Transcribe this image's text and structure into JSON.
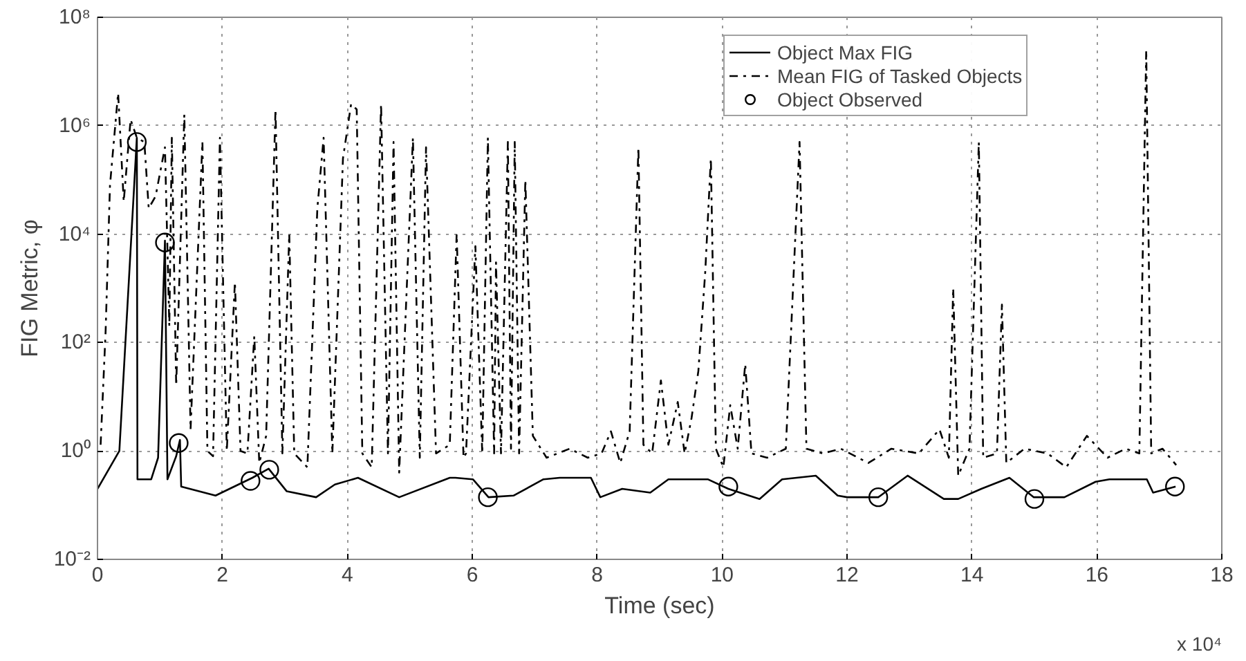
{
  "chart_data": {
    "type": "line",
    "xlabel": "Time (sec)",
    "ylabel": "FIG Metric, φ",
    "annotations": [
      "x 10⁴"
    ],
    "xlim": [
      0,
      18
    ],
    "xticks": [
      0,
      2,
      4,
      6,
      8,
      10,
      12,
      14,
      16,
      18
    ],
    "ylim": [
      0.01,
      100000000
    ],
    "log": true,
    "yticks": [
      {
        "value": 0.01,
        "label": "10⁻²"
      },
      {
        "value": 1,
        "label": "10⁰"
      },
      {
        "value": 100,
        "label": "10²"
      },
      {
        "value": 10000,
        "label": "10⁴"
      },
      {
        "value": 1000000,
        "label": "10⁶"
      },
      {
        "value": 100000000,
        "label": "10⁸"
      }
    ],
    "grid": true,
    "legend": "top right",
    "series": [
      {
        "name": "Object Max FIG",
        "line_style": "solid",
        "color": "#000000",
        "x": [
          0,
          0.35,
          0.63,
          0.64,
          0.86,
          0.97,
          1.08,
          1.12,
          1.26,
          1.32,
          1.34,
          1.89,
          2.48,
          2.74,
          3.03,
          3.5,
          3.8,
          4.17,
          4.83,
          5.64,
          5.73,
          6.01,
          6.26,
          6.66,
          7.14,
          7.4,
          7.9,
          8.05,
          8.4,
          8.85,
          9.14,
          9.77,
          10.1,
          10.6,
          10.96,
          11.5,
          11.85,
          12.0,
          12.5,
          12.97,
          13.55,
          13.78,
          14.15,
          14.6,
          14.99,
          15.48,
          15.98,
          16.2,
          16.8,
          16.9,
          17.26
        ],
        "values": [
          0.2,
          1,
          600000,
          0.3,
          0.3,
          0.75,
          7600,
          0.3,
          0.8,
          1.6,
          0.22,
          0.15,
          0.32,
          0.47,
          0.18,
          0.14,
          0.24,
          0.32,
          0.14,
          0.32,
          0.32,
          0.3,
          0.14,
          0.15,
          0.3,
          0.32,
          0.32,
          0.14,
          0.2,
          0.17,
          0.3,
          0.3,
          0.2,
          0.13,
          0.3,
          0.35,
          0.15,
          0.14,
          0.14,
          0.35,
          0.13,
          0.13,
          0.2,
          0.32,
          0.14,
          0.14,
          0.27,
          0.3,
          0.3,
          0.17,
          0.22
        ]
      },
      {
        "name": "Mean FIG of Tasked Objects",
        "line_style": "dashdot",
        "color": "#000000",
        "x": [
          0.05,
          0.13,
          0.2,
          0.33,
          0.42,
          0.53,
          0.63,
          0.75,
          0.82,
          0.93,
          1.08,
          1.15,
          1.19,
          1.26,
          1.39,
          1.49,
          1.68,
          1.76,
          1.85,
          1.96,
          2.07,
          2.2,
          2.29,
          2.4,
          2.51,
          2.59,
          2.7,
          2.85,
          2.96,
          3.07,
          3.15,
          3.36,
          3.52,
          3.62,
          3.76,
          3.93,
          4.06,
          4.15,
          4.24,
          4.39,
          4.54,
          4.65,
          4.74,
          4.83,
          5.05,
          5.16,
          5.26,
          5.42,
          5.64,
          5.75,
          5.86,
          5.9,
          6.05,
          6.16,
          6.25,
          6.35,
          6.38,
          6.46,
          6.57,
          6.62,
          6.68,
          6.75,
          6.85,
          6.97,
          7.19,
          7.56,
          7.85,
          8.07,
          8.22,
          8.37,
          8.52,
          8.66,
          8.74,
          8.88,
          9.02,
          9.14,
          9.29,
          9.4,
          9.51,
          9.62,
          9.73,
          9.82,
          9.9,
          10.02,
          10.13,
          10.25,
          10.37,
          10.47,
          10.72,
          11.02,
          11.24,
          11.35,
          11.61,
          11.9,
          12.34,
          12.71,
          13.15,
          13.48,
          13.63,
          13.7,
          13.78,
          13.96,
          14.11,
          14.18,
          14.4,
          14.48,
          14.55,
          14.84,
          15.21,
          15.51,
          15.84,
          16.17,
          16.46,
          16.68,
          16.79,
          16.87,
          17.05,
          17.27
        ],
        "values": [
          1.3,
          160,
          80000,
          4000000,
          40000,
          1300000,
          600000,
          500000,
          30000,
          50000,
          400000,
          200,
          600000,
          16,
          1600000,
          2.5,
          500000,
          1,
          0.8,
          600000,
          1,
          1300,
          1,
          0.9,
          130,
          0.6,
          1.9,
          2000000,
          0.9,
          10000,
          0.9,
          0.5,
          30000,
          600000,
          0.9,
          250000,
          2500000,
          2000000,
          0.9,
          0.5,
          2500000,
          0.9,
          500000,
          0.4,
          600000,
          0.75,
          400000,
          0.9,
          1.3,
          10000,
          0.75,
          0.9,
          6000,
          0.9,
          600000,
          0.9,
          3000,
          0.9,
          500000,
          1.1,
          500000,
          0.9,
          100000,
          1.9,
          0.75,
          1.1,
          0.75,
          0.9,
          2.3,
          0.6,
          2.3,
          400000,
          1.3,
          0.9,
          20,
          1.3,
          8,
          0.9,
          4,
          30,
          2000,
          250000,
          1.1,
          0.5,
          7,
          1.1,
          40,
          0.9,
          0.75,
          1.1,
          500000,
          1.1,
          0.9,
          1.1,
          0.6,
          1.1,
          0.9,
          2.5,
          0.75,
          1000,
          0.35,
          1.1,
          500000,
          0.75,
          0.9,
          500,
          0.6,
          1.1,
          0.9,
          0.5,
          1.9,
          0.75,
          1.1,
          0.9,
          25000000,
          0.9,
          1.1,
          0.55
        ]
      },
      {
        "name": "Object Observed",
        "type": "scatter",
        "marker": "circle",
        "color": "#000000",
        "x": [
          0.63,
          1.08,
          1.3,
          2.45,
          2.75,
          6.25,
          10.1,
          12.5,
          15.0,
          17.25
        ],
        "values": [
          500000,
          7000,
          1.4,
          0.28,
          0.45,
          0.14,
          0.22,
          0.14,
          0.13,
          0.22
        ]
      }
    ]
  }
}
